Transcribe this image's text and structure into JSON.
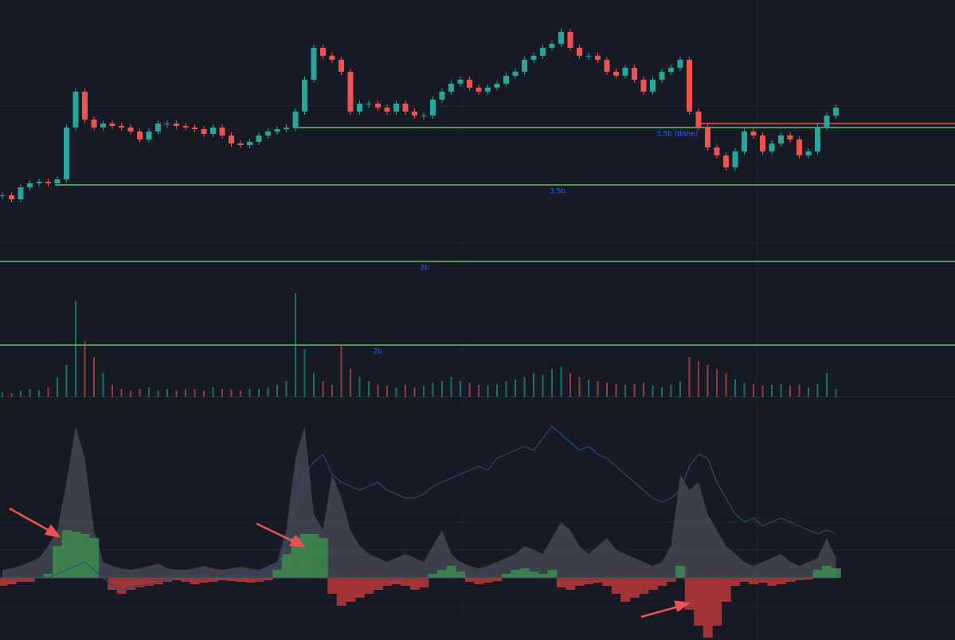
{
  "chart_data": [
    {
      "type": "candlestick",
      "up_color": "#26a69a",
      "down_color": "#ef5350",
      "ylim": [
        -543,
        260
      ],
      "closes": [
        15,
        10,
        25,
        30,
        32,
        30,
        35,
        100,
        145,
        110,
        100,
        105,
        102,
        100,
        95,
        85,
        95,
        105,
        105,
        102,
        100,
        98,
        92,
        100,
        90,
        80,
        78,
        82,
        90,
        95,
        98,
        100,
        120,
        160,
        200,
        190,
        185,
        170,
        120,
        130,
        130,
        125,
        120,
        130,
        120,
        115,
        115,
        135,
        145,
        155,
        160,
        150,
        145,
        150,
        155,
        165,
        170,
        185,
        190,
        200,
        205,
        220,
        200,
        190,
        190,
        185,
        170,
        165,
        175,
        160,
        145,
        160,
        170,
        175,
        185,
        120,
        100,
        75,
        65,
        50,
        70,
        95,
        90,
        70,
        80,
        90,
        85,
        65,
        70,
        100,
        115,
        125
      ],
      "levels": [
        {
          "label": "3.5b (done)",
          "value": 100,
          "color": "#66bb6a"
        },
        {
          "value": 105,
          "color": "#ef5350"
        },
        {
          "label": "3.5b",
          "value": 28,
          "color": "#66bb6a"
        },
        {
          "label": "2b",
          "value": -68,
          "color": "#66bb6a"
        },
        {
          "label": "2b",
          "value": -173,
          "color": "#66bb6a"
        }
      ],
      "label_color": "#2962ff"
    },
    {
      "type": "volume",
      "ylim": [
        0,
        140
      ],
      "values": [
        6,
        5,
        8,
        10,
        8,
        12,
        25,
        40,
        120,
        70,
        50,
        30,
        15,
        10,
        8,
        10,
        12,
        8,
        10,
        8,
        9,
        10,
        8,
        12,
        10,
        9,
        8,
        10,
        10,
        12,
        15,
        20,
        130,
        60,
        30,
        20,
        15,
        65,
        35,
        25,
        20,
        15,
        14,
        12,
        15,
        12,
        14,
        18,
        20,
        25,
        20,
        18,
        15,
        14,
        16,
        20,
        22,
        25,
        30,
        28,
        35,
        38,
        30,
        25,
        22,
        20,
        18,
        16,
        15,
        16,
        18,
        14,
        12,
        15,
        20,
        50,
        45,
        40,
        35,
        30,
        22,
        18,
        16,
        14,
        15,
        16,
        14,
        15,
        12,
        16,
        30,
        10
      ]
    },
    {
      "type": "indicator",
      "ylim": [
        -78,
        260
      ],
      "series": [
        {
          "kind": "area",
          "color": "#5d606b",
          "values": [
            10,
            12,
            15,
            20,
            25,
            40,
            60,
            120,
            190,
            150,
            60,
            20,
            15,
            12,
            10,
            12,
            15,
            18,
            12,
            10,
            10,
            12,
            15,
            12,
            10,
            12,
            14,
            12,
            10,
            15,
            20,
            60,
            150,
            190,
            80,
            60,
            130,
            100,
            60,
            40,
            30,
            25,
            20,
            25,
            30,
            25,
            20,
            40,
            60,
            30,
            20,
            15,
            12,
            15,
            20,
            25,
            30,
            40,
            35,
            30,
            50,
            70,
            60,
            40,
            30,
            40,
            50,
            35,
            30,
            25,
            20,
            15,
            20,
            40,
            130,
            110,
            120,
            80,
            60,
            40,
            30,
            20,
            15,
            20,
            25,
            30,
            20,
            15,
            20,
            25,
            50,
            25
          ]
        },
        {
          "kind": "delta",
          "up_color": "#3d8b4f",
          "down_color": "#b83a3a",
          "values": [
            -10,
            -8,
            -5,
            -5,
            0,
            5,
            40,
            60,
            58,
            55,
            50,
            0,
            -15,
            -20,
            -15,
            -12,
            -10,
            -8,
            -5,
            -3,
            -5,
            -8,
            -6,
            -5,
            -3,
            -4,
            -5,
            -6,
            -5,
            -3,
            10,
            30,
            50,
            55,
            55,
            50,
            -20,
            -35,
            -30,
            -25,
            -20,
            -15,
            -10,
            -8,
            -10,
            -15,
            -12,
            5,
            10,
            15,
            8,
            -5,
            -8,
            -6,
            -4,
            5,
            10,
            12,
            8,
            5,
            10,
            -12,
            -15,
            -10,
            -8,
            -6,
            -10,
            -20,
            -30,
            -25,
            -20,
            -15,
            -10,
            -5,
            15,
            -40,
            -60,
            -75,
            -60,
            -30,
            -10,
            -5,
            -8,
            -6,
            -10,
            -8,
            -5,
            -3,
            -2,
            10,
            15,
            12
          ]
        },
        {
          "kind": "line",
          "color": "#2a4a7a",
          "values": [
            0,
            0,
            0,
            0,
            0,
            0,
            5,
            10,
            15,
            20,
            10,
            0,
            -10,
            -15,
            -12,
            -10,
            -8,
            -5,
            -3,
            0,
            2,
            3,
            2,
            0,
            1,
            2,
            3,
            4,
            5,
            8,
            15,
            40,
            90,
            130,
            145,
            155,
            130,
            120,
            115,
            110,
            115,
            120,
            110,
            105,
            100,
            100,
            105,
            115,
            120,
            125,
            130,
            135,
            140,
            135,
            150,
            155,
            160,
            165,
            160,
            175,
            190,
            180,
            170,
            160,
            165,
            155,
            150,
            140,
            130,
            120,
            110,
            100,
            95,
            100,
            110,
            140,
            155,
            150,
            120,
            100,
            80,
            70,
            75,
            65,
            70,
            75,
            70,
            65,
            60,
            55,
            60,
            55
          ]
        }
      ]
    }
  ]
}
